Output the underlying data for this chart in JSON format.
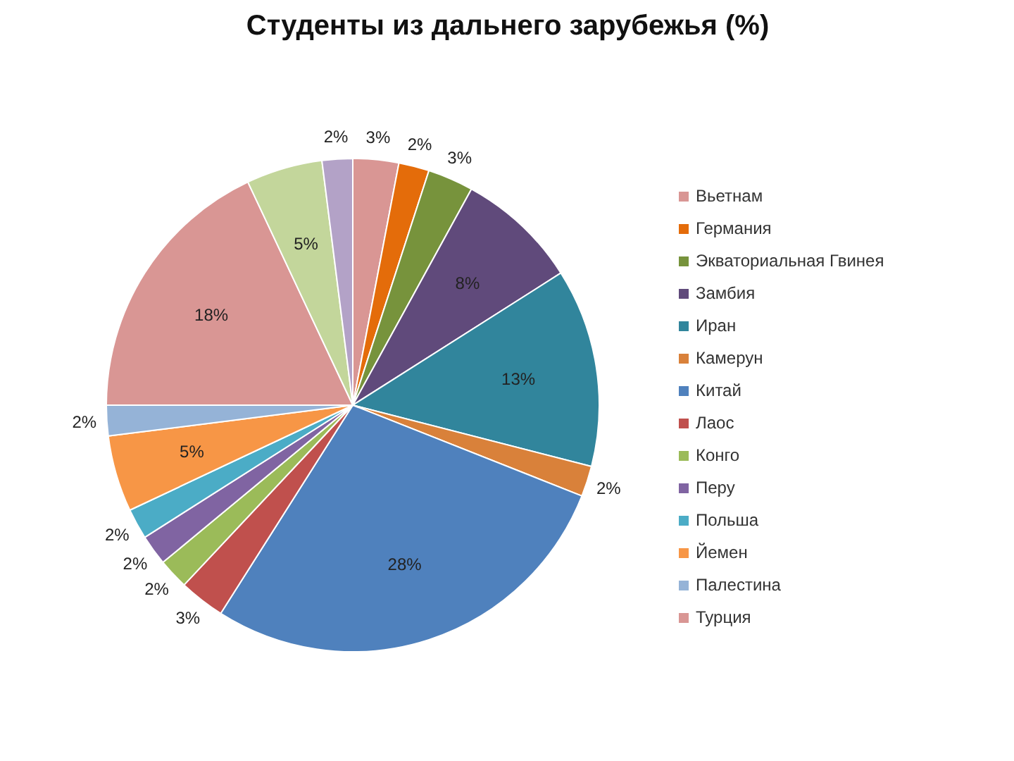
{
  "chart_data": {
    "type": "pie",
    "title": "Студенты из дальнего зарубежья (%)",
    "categories": [
      "Вьетнам",
      "Германия",
      "Экваториальная Гвинея",
      "Замбия",
      "Иран",
      "Камерун",
      "Китай",
      "Лаос",
      "Конго",
      "Перу",
      "Польша",
      "Йемен",
      "Палестина",
      "Турция",
      null,
      null
    ],
    "values": [
      3,
      2,
      3,
      8,
      13,
      2,
      28,
      3,
      2,
      2,
      2,
      5,
      2,
      18,
      5,
      2
    ],
    "value_labels": [
      "3%",
      "2%",
      "3%",
      "8%",
      "13%",
      "2%",
      "28%",
      "3%",
      "2%",
      "2%",
      "2%",
      "5%",
      "2%",
      "18%",
      "5%",
      "2%"
    ],
    "colors": [
      "#d99694",
      "#e46c0a",
      "#77933c",
      "#604a7b",
      "#31859c",
      "#d9813a",
      "#4f81bd",
      "#c0504d",
      "#9bbb59",
      "#8064a2",
      "#4bacc6",
      "#f79646",
      "#95b3d7",
      "#d99694",
      "#c3d69b",
      "#b3a2c7"
    ],
    "legend": "right"
  }
}
